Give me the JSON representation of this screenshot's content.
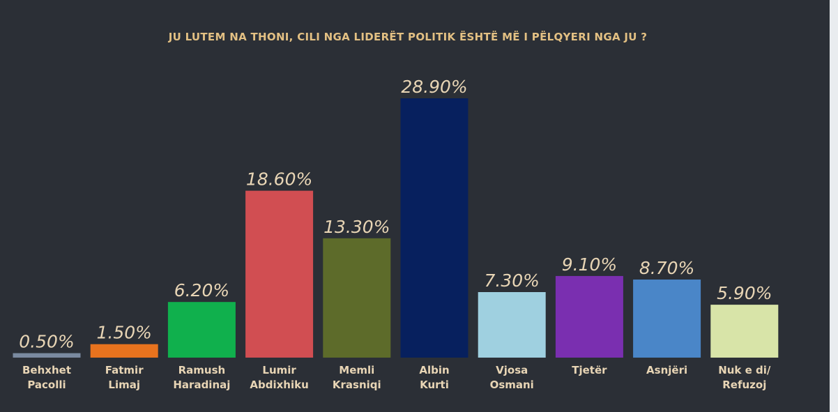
{
  "chart_data": {
    "type": "bar",
    "title": "JU LUTEM NA THONI, CILI NGA LIDERËT POLITIK ËSHTË MË I PËLQYERI NGA JU ?",
    "categories": [
      [
        "Behxhet",
        "Pacolli"
      ],
      [
        "Fatmir",
        "Limaj"
      ],
      [
        "Ramush",
        "Haradinaj"
      ],
      [
        "Lumir",
        "Abdixhiku"
      ],
      [
        "Memli",
        "Krasniqi"
      ],
      [
        "Albin",
        "Kurti"
      ],
      [
        "Vjosa",
        "Osmani"
      ],
      [
        "Tjetër"
      ],
      [
        "Asnjëri"
      ],
      [
        "Nuk e di/",
        "Refuzoj"
      ]
    ],
    "values": [
      0.5,
      1.5,
      6.2,
      18.6,
      13.3,
      28.9,
      7.3,
      9.1,
      8.7,
      5.9
    ],
    "value_labels": [
      "0.50%",
      "1.50%",
      "6.20%",
      "18.60%",
      "13.30%",
      "28.90%",
      "7.30%",
      "9.10%",
      "8.70%",
      "5.90%"
    ],
    "colors": [
      "#7a8aa0",
      "#e8731e",
      "#10b04d",
      "#d14e52",
      "#5d6b2a",
      "#07205e",
      "#9fd0e0",
      "#7a2fb0",
      "#4a86c8",
      "#d8e4a8"
    ],
    "ylim": [
      0,
      28.9
    ],
    "xlabel": "",
    "ylabel": "",
    "grid": false,
    "legend": "none"
  }
}
